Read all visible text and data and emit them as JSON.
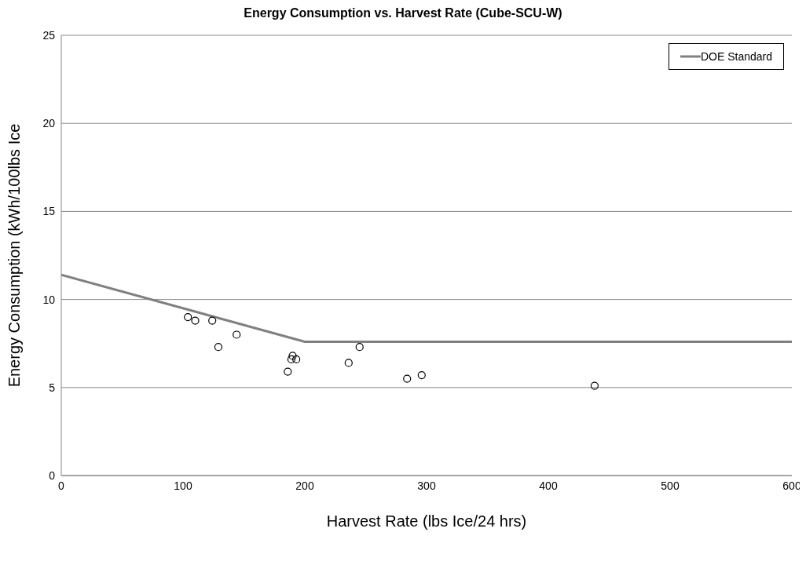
{
  "chart_data": {
    "type": "scatter",
    "title": "Energy Consumption vs. Harvest Rate (Cube-SCU-W)",
    "xlabel": "Harvest Rate (lbs Ice/24 hrs)",
    "ylabel": "Energy Consumption (kWh/100lbs Ice",
    "xlim": [
      0,
      600
    ],
    "xticks": [
      0,
      100,
      200,
      300,
      400,
      500,
      600
    ],
    "ylim": [
      0,
      25
    ],
    "yticks": [
      0,
      5,
      10,
      15,
      20,
      25
    ],
    "grid": "y",
    "legend": "top right",
    "series": [
      {
        "color": "#000000",
        "marker": "circle",
        "x": [
          104,
          110,
          124,
          144,
          129,
          190,
          189,
          193,
          186,
          236,
          245,
          284,
          296,
          438
        ],
        "values": [
          9.0,
          8.8,
          8.8,
          8.0,
          7.3,
          6.8,
          6.6,
          6.6,
          5.9,
          6.4,
          7.3,
          5.5,
          5.7,
          5.1
        ]
      },
      {
        "type": "line",
        "name": "DOE Standard",
        "color": "#808080",
        "marker": "none",
        "x": [
          0,
          200,
          600
        ],
        "values": [
          11.4,
          7.6,
          7.6
        ]
      }
    ]
  }
}
